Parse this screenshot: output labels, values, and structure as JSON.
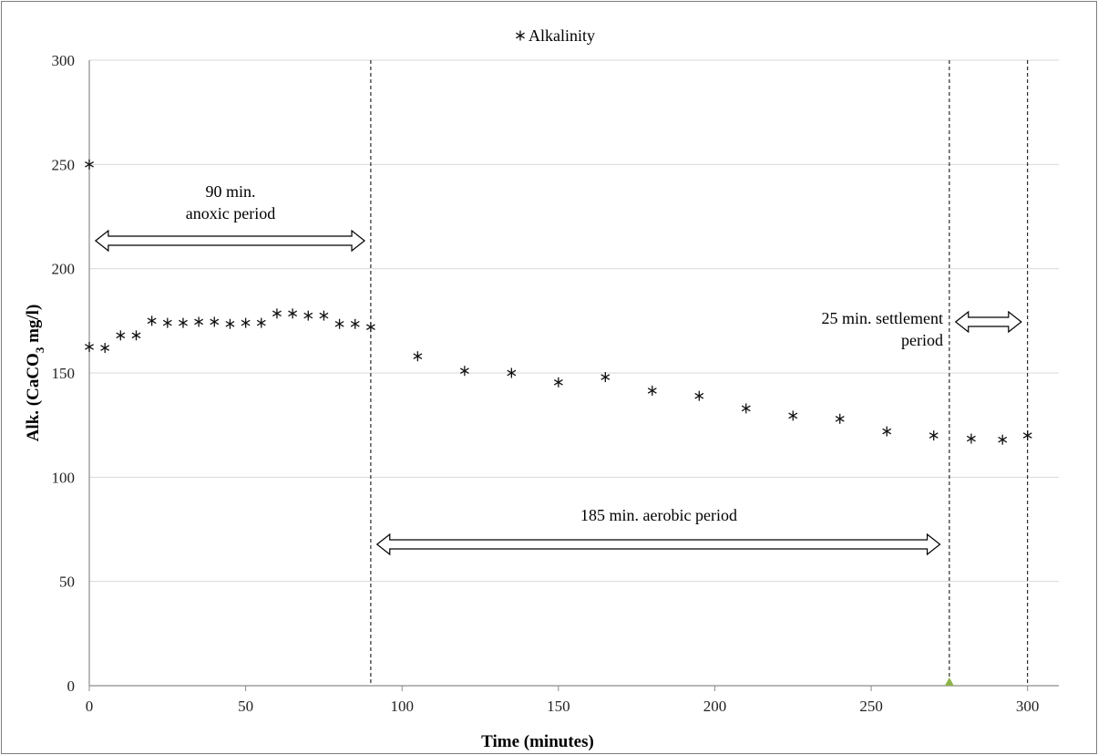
{
  "chart_data": {
    "type": "scatter",
    "title": "",
    "xlabel": "Time (minutes)",
    "ylabel_parts": [
      "Alk. (CaCO",
      "3",
      " mg/l)"
    ],
    "xlim": [
      0,
      310
    ],
    "ylim": [
      0,
      300
    ],
    "xticks": [
      "0",
      "50",
      "100",
      "150",
      "200",
      "250",
      "300"
    ],
    "yticks": [
      "0",
      "50",
      "100",
      "150",
      "200",
      "250",
      "300"
    ],
    "grid": "horizontal",
    "legend": {
      "position": "top-center",
      "marker": "asterisk"
    },
    "series": [
      {
        "name": "Alkalinity",
        "marker": "asterisk",
        "points": [
          [
            0,
            250
          ],
          [
            0,
            162.5
          ],
          [
            5,
            162
          ],
          [
            10,
            168
          ],
          [
            15,
            168
          ],
          [
            20,
            175
          ],
          [
            25,
            174
          ],
          [
            30,
            174
          ],
          [
            35,
            174.5
          ],
          [
            40,
            174.5
          ],
          [
            45,
            173.5
          ],
          [
            50,
            174
          ],
          [
            55,
            174
          ],
          [
            60,
            178.5
          ],
          [
            65,
            178.5
          ],
          [
            70,
            177.5
          ],
          [
            75,
            177.5
          ],
          [
            80,
            173.5
          ],
          [
            85,
            173.5
          ],
          [
            90,
            172
          ],
          [
            105,
            158
          ],
          [
            120,
            151
          ],
          [
            135,
            150
          ],
          [
            150,
            145.5
          ],
          [
            165,
            148
          ],
          [
            180,
            141.5
          ],
          [
            195,
            139
          ],
          [
            210,
            133
          ],
          [
            225,
            129.5
          ],
          [
            240,
            128
          ],
          [
            255,
            122
          ],
          [
            270,
            120
          ],
          [
            282,
            118.5
          ],
          [
            292,
            118
          ],
          [
            300,
            120
          ]
        ]
      }
    ],
    "markers": [
      {
        "x": 275,
        "y": 0,
        "shape": "triangle",
        "color": "#8db34a"
      }
    ],
    "vertical_lines": [
      90,
      275,
      300
    ],
    "annotations": [
      {
        "lines": [
          "90 min.",
          "anoxic period"
        ],
        "arrow_from": 2,
        "arrow_to": 88
      },
      {
        "lines": [
          "185 min. aerobic period"
        ],
        "arrow_from": 92,
        "arrow_to": 272
      },
      {
        "lines": [
          "25 min. settlement",
          "period"
        ],
        "arrow_from": 277,
        "arrow_to": 298
      }
    ],
    "colors": {
      "marker": "#111111",
      "grid": "#d9d9d9",
      "axis": "#8c8c8c"
    }
  }
}
